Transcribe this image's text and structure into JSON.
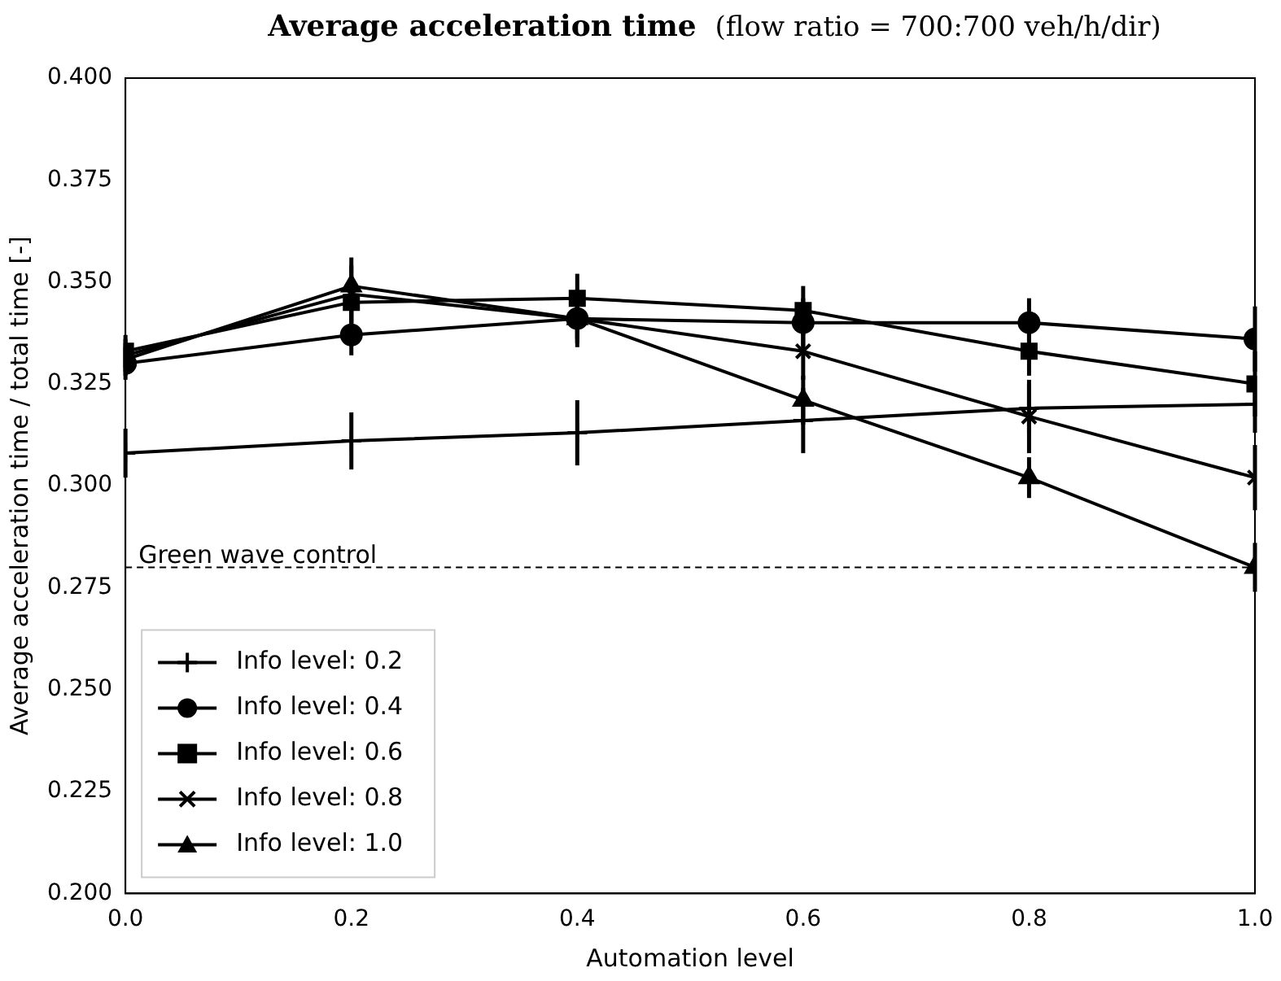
{
  "chart_data": {
    "type": "line",
    "title": "Average acceleration time",
    "subtitle": "(flow ratio = 700:700 veh/h/dir)",
    "xlabel": "Automation level",
    "ylabel": "Average acceleration time / total time [-]",
    "x": [
      0,
      0.2,
      0.4,
      0.6,
      0.8,
      1.0
    ],
    "series": [
      {
        "name": "Info level: 0.2",
        "color": "#000000",
        "marker": "plus",
        "values": [
          0.308,
          0.311,
          0.313,
          0.316,
          0.319,
          0.32
        ],
        "errors": [
          0.006,
          0.007,
          0.008,
          0.008,
          0.006,
          0.007
        ]
      },
      {
        "name": "Info level: 0.4",
        "color": "#000000",
        "marker": "circle",
        "values": [
          0.33,
          0.337,
          0.341,
          0.34,
          0.34,
          0.336
        ],
        "errors": [
          0.004,
          0.005,
          0.006,
          0.006,
          0.006,
          0.008
        ]
      },
      {
        "name": "Info level: 0.6",
        "color": "#000000",
        "marker": "square",
        "values": [
          0.333,
          0.345,
          0.346,
          0.343,
          0.333,
          0.325
        ],
        "errors": [
          0.004,
          0.006,
          0.006,
          0.006,
          0.006,
          0.008
        ]
      },
      {
        "name": "Info level: 0.8",
        "color": "#000000",
        "marker": "cross",
        "values": [
          0.332,
          0.347,
          0.341,
          0.333,
          0.317,
          0.302
        ],
        "errors": [
          0.004,
          0.007,
          0.007,
          0.007,
          0.009,
          0.008
        ]
      },
      {
        "name": "Info level: 1.0",
        "color": "#000000",
        "marker": "triangle",
        "values": [
          0.331,
          0.349,
          0.341,
          0.321,
          0.302,
          0.28
        ],
        "errors": [
          0.004,
          0.007,
          0.005,
          0.006,
          0.005,
          0.006
        ]
      }
    ],
    "xlim": [
      0,
      1
    ],
    "xticks": [
      {
        "value": 0,
        "label": "0.0"
      },
      {
        "value": 0.2,
        "label": "0.2"
      },
      {
        "value": 0.4,
        "label": "0.4"
      },
      {
        "value": 0.6,
        "label": "0.6"
      },
      {
        "value": 0.8,
        "label": "0.8"
      },
      {
        "value": 1,
        "label": "1.0"
      }
    ],
    "ylim": [
      0.2,
      0.4
    ],
    "yticks": [
      {
        "value": 0.2,
        "label": "0.200"
      },
      {
        "value": 0.225,
        "label": "0.225"
      },
      {
        "value": 0.25,
        "label": "0.250"
      },
      {
        "value": 0.275,
        "label": "0.275"
      },
      {
        "value": 0.3,
        "label": "0.300"
      },
      {
        "value": 0.325,
        "label": "0.325"
      },
      {
        "value": 0.35,
        "label": "0.350"
      },
      {
        "value": 0.375,
        "label": "0.375"
      },
      {
        "value": 0.4,
        "label": "0.400"
      }
    ],
    "ref_lines": [
      {
        "axis": "y",
        "value": 0.28,
        "label": "Green wave control",
        "line_style": "dashed",
        "color": "#000000"
      }
    ],
    "legend": "bottom left",
    "grid": false,
    "line_style": "solid"
  }
}
